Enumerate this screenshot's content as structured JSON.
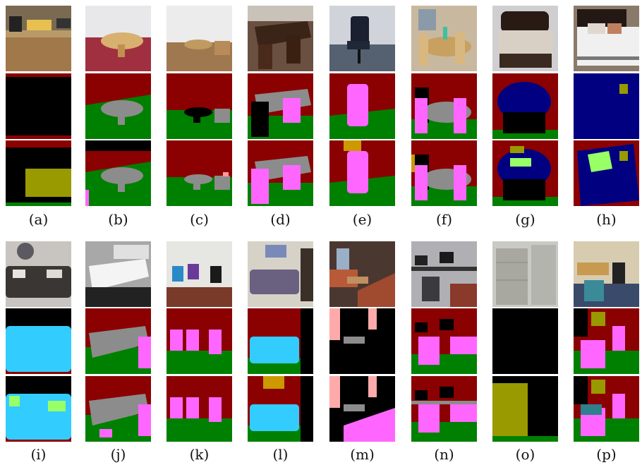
{
  "colors": {
    "wall": "#8b0000",
    "floor": "#008000",
    "table": "#8c8c8c",
    "chair": "#ff66ff",
    "sofa": "#33ccff",
    "bed": "#000080",
    "pillow": "#99ff66",
    "cabinet": "#999900",
    "picture": "#cc9900",
    "black": "#000000",
    "window": "#ffaaaa"
  },
  "panels": [
    {
      "label": "(a)",
      "photo": "kitchen"
    },
    {
      "label": "(b)",
      "photo": "round-table-room"
    },
    {
      "label": "(c)",
      "photo": "wood-floor-tables"
    },
    {
      "label": "(d)",
      "photo": "conference-table"
    },
    {
      "label": "(e)",
      "photo": "office-chair"
    },
    {
      "label": "(f)",
      "photo": "dining-set"
    },
    {
      "label": "(g)",
      "photo": "bed-dark"
    },
    {
      "label": "(h)",
      "photo": "bed-white"
    },
    {
      "label": "(i)",
      "photo": "dark-sofa"
    },
    {
      "label": "(j)",
      "photo": "white-table"
    },
    {
      "label": "(k)",
      "photo": "colored-chairs"
    },
    {
      "label": "(l)",
      "photo": "purple-sofa"
    },
    {
      "label": "(m)",
      "photo": "lounge"
    },
    {
      "label": "(n)",
      "photo": "computer-desks"
    },
    {
      "label": "(o)",
      "photo": "file-cabinet"
    },
    {
      "label": "(p)",
      "photo": "study-room"
    }
  ]
}
